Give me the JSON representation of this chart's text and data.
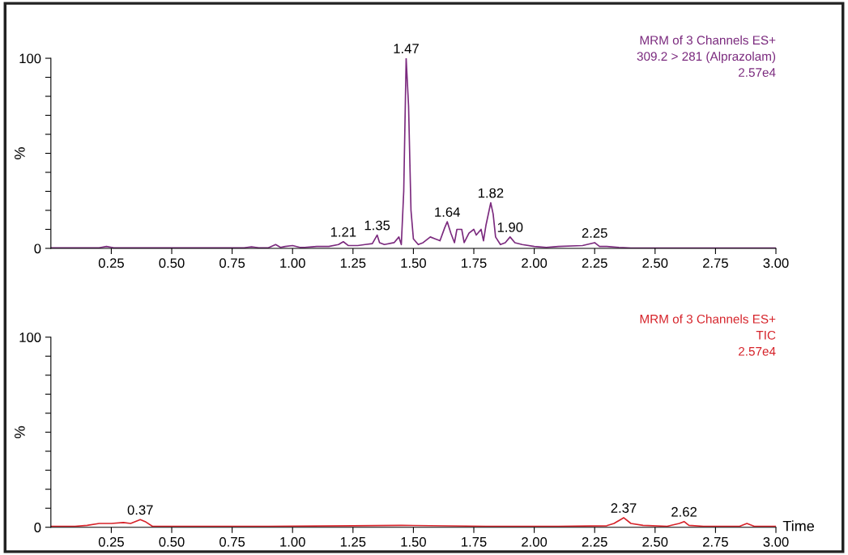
{
  "chart_data": [
    {
      "type": "line",
      "title": "MRM of 3 Channels ES+",
      "subtitle": "309.2 > 281 (Alprazolam)",
      "ylabel": "%",
      "x": [
        0,
        0.1,
        0.2,
        0.23,
        0.26,
        0.4,
        0.6,
        0.8,
        0.83,
        0.86,
        0.9,
        0.93,
        0.95,
        0.97,
        1.0,
        1.03,
        1.05,
        1.1,
        1.15,
        1.19,
        1.21,
        1.23,
        1.27,
        1.3,
        1.33,
        1.35,
        1.36,
        1.38,
        1.42,
        1.44,
        1.45,
        1.46,
        1.47,
        1.48,
        1.49,
        1.5,
        1.52,
        1.54,
        1.57,
        1.59,
        1.61,
        1.63,
        1.64,
        1.655,
        1.67,
        1.68,
        1.7,
        1.71,
        1.73,
        1.75,
        1.76,
        1.78,
        1.79,
        1.8,
        1.82,
        1.83,
        1.84,
        1.86,
        1.88,
        1.9,
        1.92,
        1.95,
        2.0,
        2.05,
        2.1,
        2.2,
        2.25,
        2.27,
        2.3,
        2.35,
        2.4,
        2.6,
        2.8,
        3.0
      ],
      "series": [
        {
          "color": "#7b2a7e",
          "values": [
            0.3,
            0.3,
            0.3,
            1,
            0.3,
            0.3,
            0.3,
            0.3,
            0.8,
            0.3,
            0.3,
            2,
            0.5,
            1,
            1.5,
            0.5,
            0.5,
            1,
            1,
            2,
            3.5,
            1.5,
            1.5,
            2,
            2.5,
            7,
            3,
            2,
            3,
            6,
            2,
            30,
            100,
            75,
            20,
            5,
            2,
            3,
            6,
            5,
            4,
            11,
            14,
            8,
            3,
            10,
            10,
            3,
            8,
            10,
            7,
            10,
            4,
            12,
            24,
            18,
            6,
            2,
            3,
            6,
            3,
            2,
            1,
            0.5,
            1,
            1.5,
            3,
            1,
            1,
            0.5,
            0.2,
            0.2,
            0.2,
            0.2
          ]
        }
      ],
      "xlim": [
        0,
        3.0
      ],
      "ylim": [
        0,
        100
      ],
      "xticks": [
        {
          "value": 0.25,
          "label": "0.25"
        },
        {
          "value": 0.5,
          "label": "0.50"
        },
        {
          "value": 0.75,
          "label": "0.75"
        },
        {
          "value": 1.0,
          "label": "1.00"
        },
        {
          "value": 1.25,
          "label": "1.25"
        },
        {
          "value": 1.5,
          "label": "1.50"
        },
        {
          "value": 1.75,
          "label": "1.75"
        },
        {
          "value": 2.0,
          "label": "2.00"
        },
        {
          "value": 2.25,
          "label": "2.25"
        },
        {
          "value": 2.5,
          "label": "2.50"
        },
        {
          "value": 2.75,
          "label": "2.75"
        },
        {
          "value": 3.0,
          "label": "3.00"
        }
      ],
      "yticks": [
        0,
        {
          "value": 10,
          "label": null
        },
        {
          "value": 20,
          "label": null
        },
        {
          "value": 30,
          "label": null
        },
        {
          "value": 40,
          "label": null
        },
        {
          "value": 50,
          "label": null
        },
        {
          "value": 60,
          "label": null
        },
        {
          "value": 70,
          "label": null
        },
        {
          "value": 80,
          "label": null
        },
        {
          "value": 90,
          "label": null
        },
        100
      ],
      "annotations": [
        "2.57e4",
        {
          "text": "1.21",
          "x": 1.21,
          "y": 3.5
        },
        {
          "text": "1.35",
          "x": 1.35,
          "y": 7
        },
        {
          "text": "1.47",
          "x": 1.47,
          "y": 100
        },
        {
          "text": "1.64",
          "x": 1.64,
          "y": 14
        },
        {
          "text": "1.82",
          "x": 1.82,
          "y": 24
        },
        {
          "text": "1.90",
          "x": 1.9,
          "y": 6
        },
        {
          "text": "2.25",
          "x": 2.25,
          "y": 3
        }
      ]
    },
    {
      "type": "line",
      "title": "MRM of 3 Channels ES+",
      "subtitle": "TIC",
      "ylabel": "%",
      "xlabel": "Time",
      "x": [
        0,
        0.1,
        0.15,
        0.2,
        0.25,
        0.3,
        0.33,
        0.37,
        0.39,
        0.42,
        0.6,
        0.9,
        1.25,
        1.45,
        1.8,
        2.1,
        2.3,
        2.33,
        2.37,
        2.4,
        2.45,
        2.55,
        2.6,
        2.62,
        2.64,
        2.7,
        2.85,
        2.88,
        2.91,
        3.0
      ],
      "series": [
        {
          "color": "#d6232a",
          "values": [
            0.5,
            0.5,
            1,
            2,
            2,
            2.5,
            2,
            4,
            3,
            0.5,
            0.5,
            0.5,
            0.8,
            1,
            0.5,
            0.5,
            0.8,
            2,
            5,
            2,
            1,
            0.5,
            2,
            3,
            1,
            0.5,
            0.5,
            2,
            0.5,
            0.5
          ]
        }
      ],
      "xlim": [
        0,
        3.0
      ],
      "ylim": [
        0,
        100
      ],
      "xticks": [
        {
          "value": 0.25,
          "label": "0.25"
        },
        {
          "value": 0.5,
          "label": "0.50"
        },
        {
          "value": 0.75,
          "label": "0.75"
        },
        {
          "value": 1.0,
          "label": "1.00"
        },
        {
          "value": 1.25,
          "label": "1.25"
        },
        {
          "value": 1.5,
          "label": "1.50"
        },
        {
          "value": 1.75,
          "label": "1.75"
        },
        {
          "value": 2.0,
          "label": "2.00"
        },
        {
          "value": 2.25,
          "label": "2.25"
        },
        {
          "value": 2.5,
          "label": "2.50"
        },
        {
          "value": 2.75,
          "label": "2.75"
        },
        {
          "value": 3.0,
          "label": "3.00"
        }
      ],
      "yticks": [
        0,
        {
          "value": 10,
          "label": null
        },
        {
          "value": 20,
          "label": null
        },
        {
          "value": 30,
          "label": null
        },
        {
          "value": 40,
          "label": null
        },
        {
          "value": 50,
          "label": null
        },
        {
          "value": 60,
          "label": null
        },
        {
          "value": 70,
          "label": null
        },
        {
          "value": 80,
          "label": null
        },
        {
          "value": 90,
          "label": null
        },
        100
      ],
      "annotations": [
        "2.57e4",
        {
          "text": "0.37",
          "x": 0.37,
          "y": 4
        },
        {
          "text": "2.37",
          "x": 2.37,
          "y": 5
        },
        {
          "text": "2.62",
          "x": 2.62,
          "y": 3
        }
      ]
    }
  ]
}
